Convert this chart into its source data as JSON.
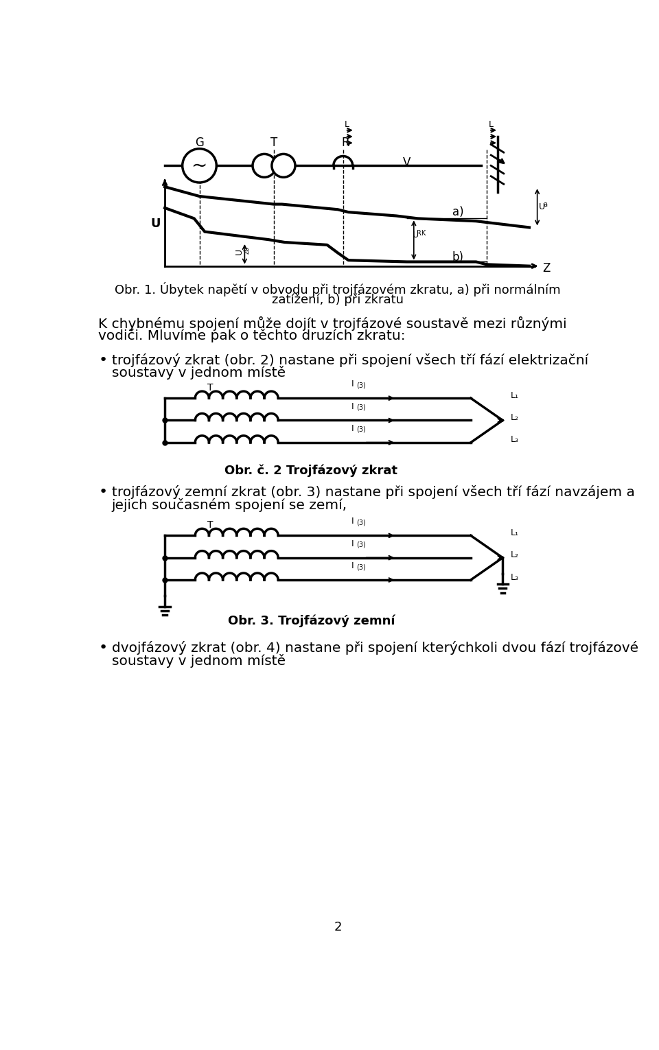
{
  "background_color": "#ffffff",
  "page_number": "2",
  "fig1_title_line1": "Obr. 1. Úbytek napětí v obvodu při trojfázovém zkratu, a) při normálním",
  "fig1_title_line2": "zatížení, b) při zkratu",
  "para1_line1": "K chybnému spojení může dojít v trojfázové soustavě mezi různými",
  "para1_line2": "vodiči. Mluvíme pak o těchto druzích zkratu:",
  "bullet1_line1": "trojfázový zkrat (obr. 2) nastane při spojení všech tří fází elektrizační",
  "bullet1_line2": "soustavy v jednom místě",
  "fig2_caption": "Obr. č. 2 Trojfázový zkrat",
  "bullet2_line1": "trojfázový zemní zkrat (obr. 3) nastane při spojení všech tří fází navzájem a",
  "bullet2_line2": "jejich současném spojení se zemí,",
  "fig3_caption": "Obr. 3. Trojfázový zemní",
  "bullet3_line1": "dvojfázový zkrat (obr. 4) nastane při spojení kterýchkoli dvou fází trojfázové",
  "bullet3_line2": "soustavy v jednom místě",
  "text_color": "#000000",
  "line_color": "#000000",
  "font_size_body": 14.5,
  "font_size_caption": 13
}
